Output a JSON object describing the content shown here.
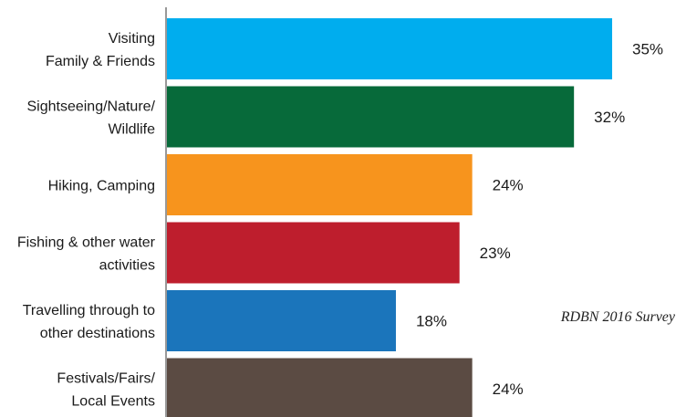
{
  "chart_data": {
    "type": "bar",
    "orientation": "horizontal",
    "categories": [
      [
        "Visiting",
        "Family & Friends"
      ],
      [
        "Sightseeing/Nature/",
        "Wildlife"
      ],
      [
        "Hiking, Camping"
      ],
      [
        "Fishing & other water",
        "activities"
      ],
      [
        "Travelling through to",
        "other destinations"
      ],
      [
        "Festivals/Fairs/",
        "Local Events"
      ]
    ],
    "values": [
      35,
      32,
      24,
      23,
      18,
      24
    ],
    "value_labels": [
      "35%",
      "32%",
      "24%",
      "23%",
      "18%",
      "24%"
    ],
    "colors": [
      "#00adee",
      "#076a3a",
      "#f7941d",
      "#be1e2d",
      "#1b75bb",
      "#5b4b43"
    ],
    "unit": "%",
    "xlim": [
      0,
      40
    ],
    "grid": false,
    "legend": "none",
    "annotation": "RDBN 2016 Survey"
  }
}
